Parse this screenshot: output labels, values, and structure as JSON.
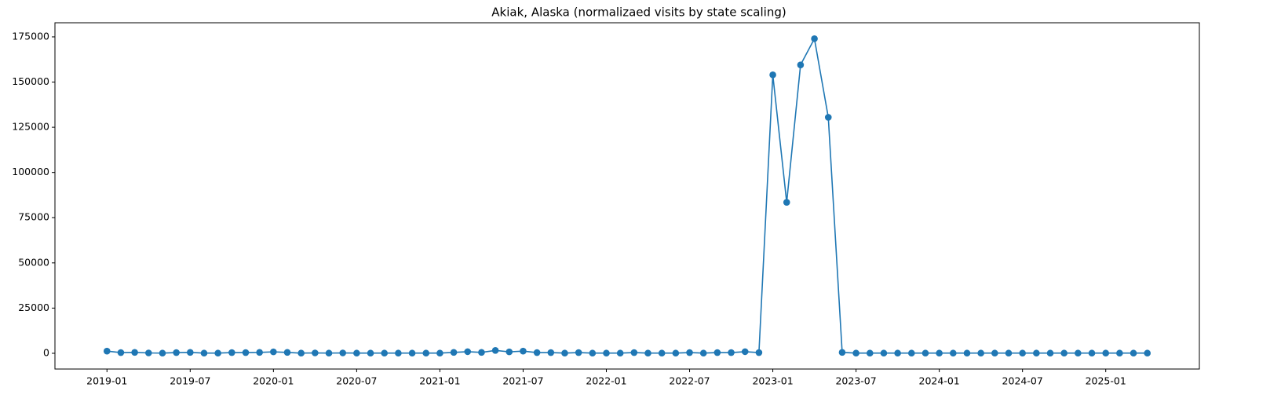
{
  "chart_data": {
    "type": "line",
    "title": "Akiak, Alaska (normalizaed visits by state scaling)",
    "color": "#1f77b4",
    "x": [
      "2019-01",
      "2019-02",
      "2019-03",
      "2019-04",
      "2019-05",
      "2019-06",
      "2019-07",
      "2019-08",
      "2019-09",
      "2019-10",
      "2019-11",
      "2019-12",
      "2020-01",
      "2020-02",
      "2020-03",
      "2020-04",
      "2020-05",
      "2020-06",
      "2020-07",
      "2020-08",
      "2020-09",
      "2020-10",
      "2020-11",
      "2020-12",
      "2021-01",
      "2021-02",
      "2021-03",
      "2021-04",
      "2021-05",
      "2021-06",
      "2021-07",
      "2021-08",
      "2021-09",
      "2021-10",
      "2021-11",
      "2021-12",
      "2022-01",
      "2022-02",
      "2022-03",
      "2022-04",
      "2022-05",
      "2022-06",
      "2022-07",
      "2022-08",
      "2022-09",
      "2022-10",
      "2022-11",
      "2022-12",
      "2023-01",
      "2023-02",
      "2023-03",
      "2023-04",
      "2023-05",
      "2023-06",
      "2023-07",
      "2023-08",
      "2023-09",
      "2023-10",
      "2023-11",
      "2023-12",
      "2024-01",
      "2024-02",
      "2024-03",
      "2024-04",
      "2024-05",
      "2024-06",
      "2024-07",
      "2024-08",
      "2024-09",
      "2024-10",
      "2024-11",
      "2024-12",
      "2025-01",
      "2025-02",
      "2025-03",
      "2025-04"
    ],
    "values": [
      1200,
      400,
      500,
      200,
      100,
      400,
      500,
      100,
      100,
      400,
      400,
      500,
      800,
      500,
      100,
      200,
      100,
      200,
      100,
      100,
      100,
      100,
      100,
      100,
      100,
      500,
      900,
      500,
      1600,
      800,
      1200,
      400,
      400,
      100,
      400,
      100,
      100,
      100,
      400,
      100,
      100,
      100,
      400,
      100,
      400,
      400,
      900,
      400,
      154000,
      83500,
      159500,
      174000,
      130500,
      500,
      100,
      100,
      100,
      100,
      100,
      100,
      100,
      100,
      100,
      100,
      100,
      100,
      100,
      100,
      100,
      100,
      100,
      100,
      100,
      100,
      100,
      100
    ],
    "xticks": [
      "2019-01",
      "2019-07",
      "2020-01",
      "2020-07",
      "2021-01",
      "2021-07",
      "2022-01",
      "2022-07",
      "2023-01",
      "2023-07",
      "2024-01",
      "2024-07",
      "2025-01"
    ],
    "ylim": [
      -8700,
      182800
    ],
    "yticks": [
      0,
      25000,
      50000,
      75000,
      100000,
      125000,
      150000,
      175000
    ]
  }
}
